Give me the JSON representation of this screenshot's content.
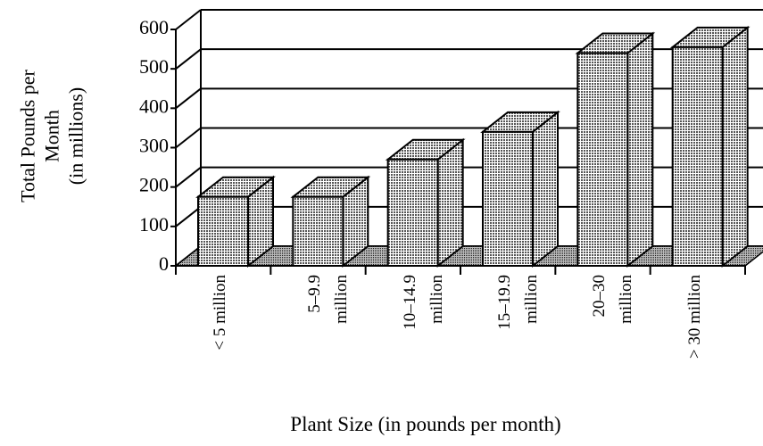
{
  "chart_data": {
    "type": "bar3d",
    "y_label": "Total Pounds per\nMonth\n(in millions)",
    "x_label": "Plant Size (in pounds per month)",
    "categories": [
      "< 5 million",
      "5–9.9\nmillion",
      "10–14.9\nmillion",
      "15–19.9\nmillion",
      "20–30\nmillion",
      "> 30 million"
    ],
    "values": [
      175,
      175,
      270,
      340,
      540,
      555
    ],
    "ylim": [
      0,
      600
    ],
    "yticks": [
      0,
      100,
      200,
      300,
      400,
      500,
      600
    ],
    "grid": true,
    "color": "#b8b8b8"
  }
}
